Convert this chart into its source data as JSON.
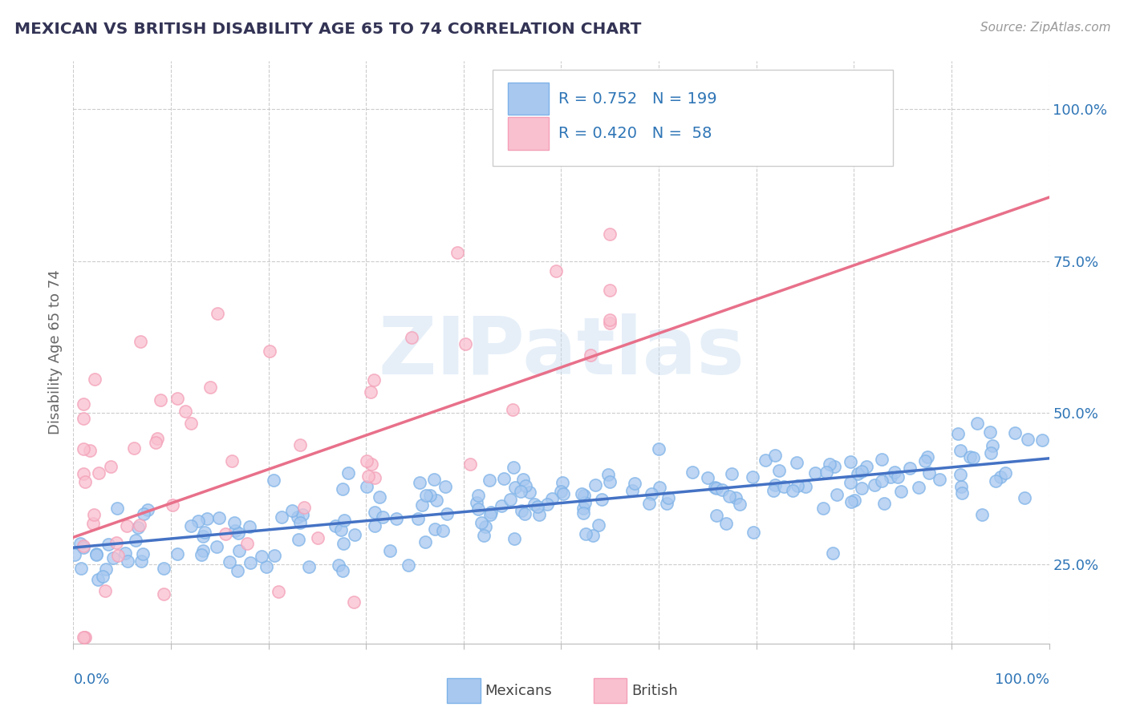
{
  "title": "MEXICAN VS BRITISH DISABILITY AGE 65 TO 74 CORRELATION CHART",
  "source_text": "Source: ZipAtlas.com",
  "ylabel": "Disability Age 65 to 74",
  "ylabel_right_ticks": [
    "25.0%",
    "50.0%",
    "75.0%",
    "100.0%"
  ],
  "ylabel_right_vals": [
    0.25,
    0.5,
    0.75,
    1.0
  ],
  "xlim": [
    0.0,
    1.0
  ],
  "ylim": [
    0.12,
    1.08
  ],
  "mexican_color": "#a8c8f0",
  "british_color": "#f9c0d0",
  "mexican_edge_color": "#7eb3e8",
  "british_edge_color": "#f4a0b8",
  "mexican_line_color": "#4472c4",
  "british_line_color": "#e8708a",
  "mexican_R": 0.752,
  "mexican_N": 199,
  "british_R": 0.42,
  "british_N": 58,
  "watermark_text": "ZIPatlas",
  "background_color": "#ffffff",
  "grid_color": "#cccccc",
  "title_color": "#333355",
  "legend_R_color": "#2e75b6",
  "tick_label_color": "#2e75b6",
  "mexican_trendline": [
    0.0,
    1.0,
    0.278,
    0.425
  ],
  "british_trendline": [
    0.0,
    1.0,
    0.295,
    0.855
  ]
}
